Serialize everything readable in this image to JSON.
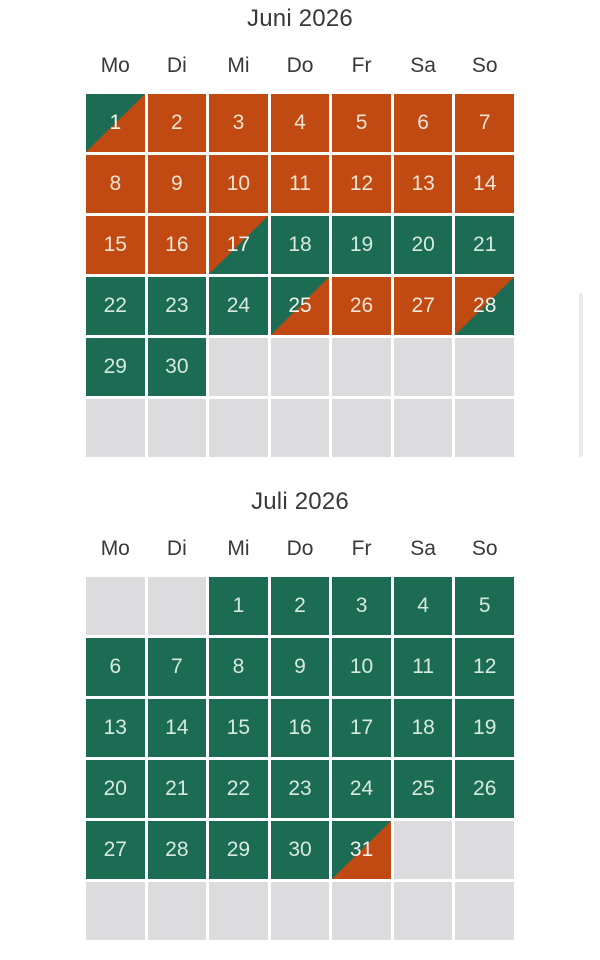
{
  "colors": {
    "available_green": "#1c6b53",
    "booked_orange": "#c14a12",
    "empty_gray": "#dcdcde",
    "heading_text": "#383838",
    "day_text_on_green": "#d6eadf",
    "day_text_on_orange": "#f4e4d4",
    "day_text_on_changeover": "#f7f3ec",
    "page_background": "#ffffff",
    "scrollbar": "#e9e9e9"
  },
  "weekday_headers": [
    "Mo",
    "Di",
    "Mi",
    "Do",
    "Fr",
    "Sa",
    "So"
  ],
  "months": [
    {
      "key": "juni-2026",
      "title": "Juni 2026",
      "cells": [
        {
          "day": "1",
          "type": "changeover_start"
        },
        {
          "day": "2",
          "type": "booked"
        },
        {
          "day": "3",
          "type": "booked"
        },
        {
          "day": "4",
          "type": "booked"
        },
        {
          "day": "5",
          "type": "booked"
        },
        {
          "day": "6",
          "type": "booked"
        },
        {
          "day": "7",
          "type": "booked"
        },
        {
          "day": "8",
          "type": "booked"
        },
        {
          "day": "9",
          "type": "booked"
        },
        {
          "day": "10",
          "type": "booked"
        },
        {
          "day": "11",
          "type": "booked"
        },
        {
          "day": "12",
          "type": "booked"
        },
        {
          "day": "13",
          "type": "booked"
        },
        {
          "day": "14",
          "type": "booked"
        },
        {
          "day": "15",
          "type": "booked"
        },
        {
          "day": "16",
          "type": "booked"
        },
        {
          "day": "17",
          "type": "changeover_end"
        },
        {
          "day": "18",
          "type": "available"
        },
        {
          "day": "19",
          "type": "available"
        },
        {
          "day": "20",
          "type": "available"
        },
        {
          "day": "21",
          "type": "available"
        },
        {
          "day": "22",
          "type": "available"
        },
        {
          "day": "23",
          "type": "available"
        },
        {
          "day": "24",
          "type": "available"
        },
        {
          "day": "25",
          "type": "changeover_start"
        },
        {
          "day": "26",
          "type": "booked"
        },
        {
          "day": "27",
          "type": "booked"
        },
        {
          "day": "28",
          "type": "changeover_end"
        },
        {
          "day": "29",
          "type": "available"
        },
        {
          "day": "30",
          "type": "available"
        },
        {
          "day": "",
          "type": "empty"
        },
        {
          "day": "",
          "type": "empty"
        },
        {
          "day": "",
          "type": "empty"
        },
        {
          "day": "",
          "type": "empty"
        },
        {
          "day": "",
          "type": "empty"
        },
        {
          "day": "",
          "type": "empty"
        },
        {
          "day": "",
          "type": "empty"
        },
        {
          "day": "",
          "type": "empty"
        },
        {
          "day": "",
          "type": "empty"
        },
        {
          "day": "",
          "type": "empty"
        },
        {
          "day": "",
          "type": "empty"
        },
        {
          "day": "",
          "type": "empty"
        }
      ]
    },
    {
      "key": "juli-2026",
      "title": "Juli 2026",
      "cells": [
        {
          "day": "",
          "type": "empty"
        },
        {
          "day": "",
          "type": "empty"
        },
        {
          "day": "1",
          "type": "available"
        },
        {
          "day": "2",
          "type": "available"
        },
        {
          "day": "3",
          "type": "available"
        },
        {
          "day": "4",
          "type": "available"
        },
        {
          "day": "5",
          "type": "available"
        },
        {
          "day": "6",
          "type": "available"
        },
        {
          "day": "7",
          "type": "available"
        },
        {
          "day": "8",
          "type": "available"
        },
        {
          "day": "9",
          "type": "available"
        },
        {
          "day": "10",
          "type": "available"
        },
        {
          "day": "11",
          "type": "available"
        },
        {
          "day": "12",
          "type": "available"
        },
        {
          "day": "13",
          "type": "available"
        },
        {
          "day": "14",
          "type": "available"
        },
        {
          "day": "15",
          "type": "available"
        },
        {
          "day": "16",
          "type": "available"
        },
        {
          "day": "17",
          "type": "available"
        },
        {
          "day": "18",
          "type": "available"
        },
        {
          "day": "19",
          "type": "available"
        },
        {
          "day": "20",
          "type": "available"
        },
        {
          "day": "21",
          "type": "available"
        },
        {
          "day": "22",
          "type": "available"
        },
        {
          "day": "23",
          "type": "available"
        },
        {
          "day": "24",
          "type": "available"
        },
        {
          "day": "25",
          "type": "available"
        },
        {
          "day": "26",
          "type": "available"
        },
        {
          "day": "27",
          "type": "available"
        },
        {
          "day": "28",
          "type": "available"
        },
        {
          "day": "29",
          "type": "available"
        },
        {
          "day": "30",
          "type": "available"
        },
        {
          "day": "31",
          "type": "changeover_start"
        },
        {
          "day": "",
          "type": "empty"
        },
        {
          "day": "",
          "type": "empty"
        },
        {
          "day": "",
          "type": "empty"
        },
        {
          "day": "",
          "type": "empty"
        },
        {
          "day": "",
          "type": "empty"
        },
        {
          "day": "",
          "type": "empty"
        },
        {
          "day": "",
          "type": "empty"
        },
        {
          "day": "",
          "type": "empty"
        },
        {
          "day": "",
          "type": "empty"
        }
      ]
    }
  ]
}
